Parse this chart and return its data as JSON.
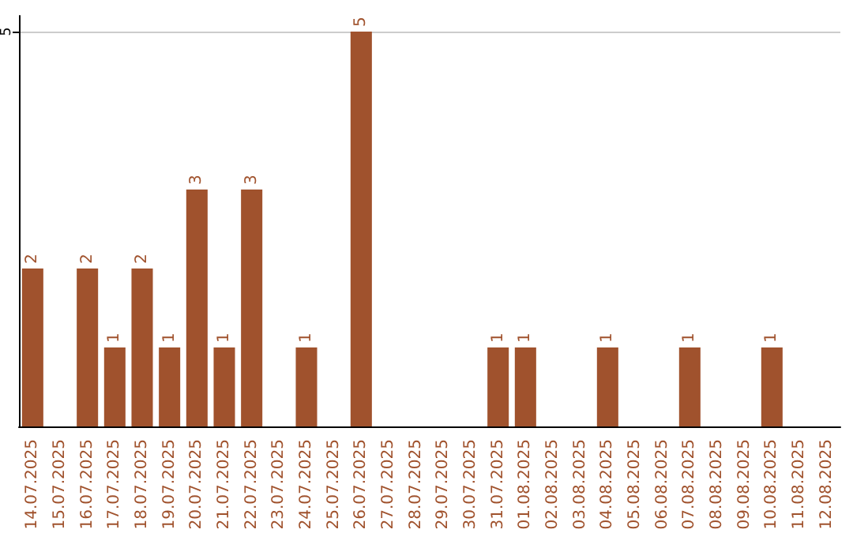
{
  "chart_data": {
    "type": "bar",
    "categories": [
      "14.07.2025",
      "15.07.2025",
      "16.07.2025",
      "17.07.2025",
      "18.07.2025",
      "19.07.2025",
      "20.07.2025",
      "21.07.2025",
      "22.07.2025",
      "23.07.2025",
      "24.07.2025",
      "25.07.2025",
      "26.07.2025",
      "27.07.2025",
      "28.07.2025",
      "29.07.2025",
      "30.07.2025",
      "31.07.2025",
      "01.08.2025",
      "02.08.2025",
      "03.08.2025",
      "04.08.2025",
      "05.08.2025",
      "06.08.2025",
      "07.08.2025",
      "08.08.2025",
      "09.08.2025",
      "10.08.2025",
      "11.08.2025",
      "12.08.2025"
    ],
    "values": [
      2,
      0,
      2,
      1,
      2,
      1,
      3,
      1,
      3,
      0,
      1,
      0,
      5,
      0,
      0,
      0,
      0,
      1,
      1,
      0,
      0,
      1,
      0,
      0,
      1,
      0,
      0,
      1,
      0,
      0
    ],
    "value_labels": [
      "2",
      null,
      "2",
      "1",
      "2",
      "1",
      "3",
      "1",
      "3",
      null,
      "1",
      null,
      "5",
      null,
      null,
      null,
      null,
      "1",
      "1",
      null,
      null,
      "1",
      null,
      null,
      "1",
      null,
      null,
      "1",
      null,
      null
    ],
    "color": "#a0522d",
    "ylim": [
      0,
      5.2
    ],
    "yticks": [
      5
    ],
    "grid": "y"
  }
}
